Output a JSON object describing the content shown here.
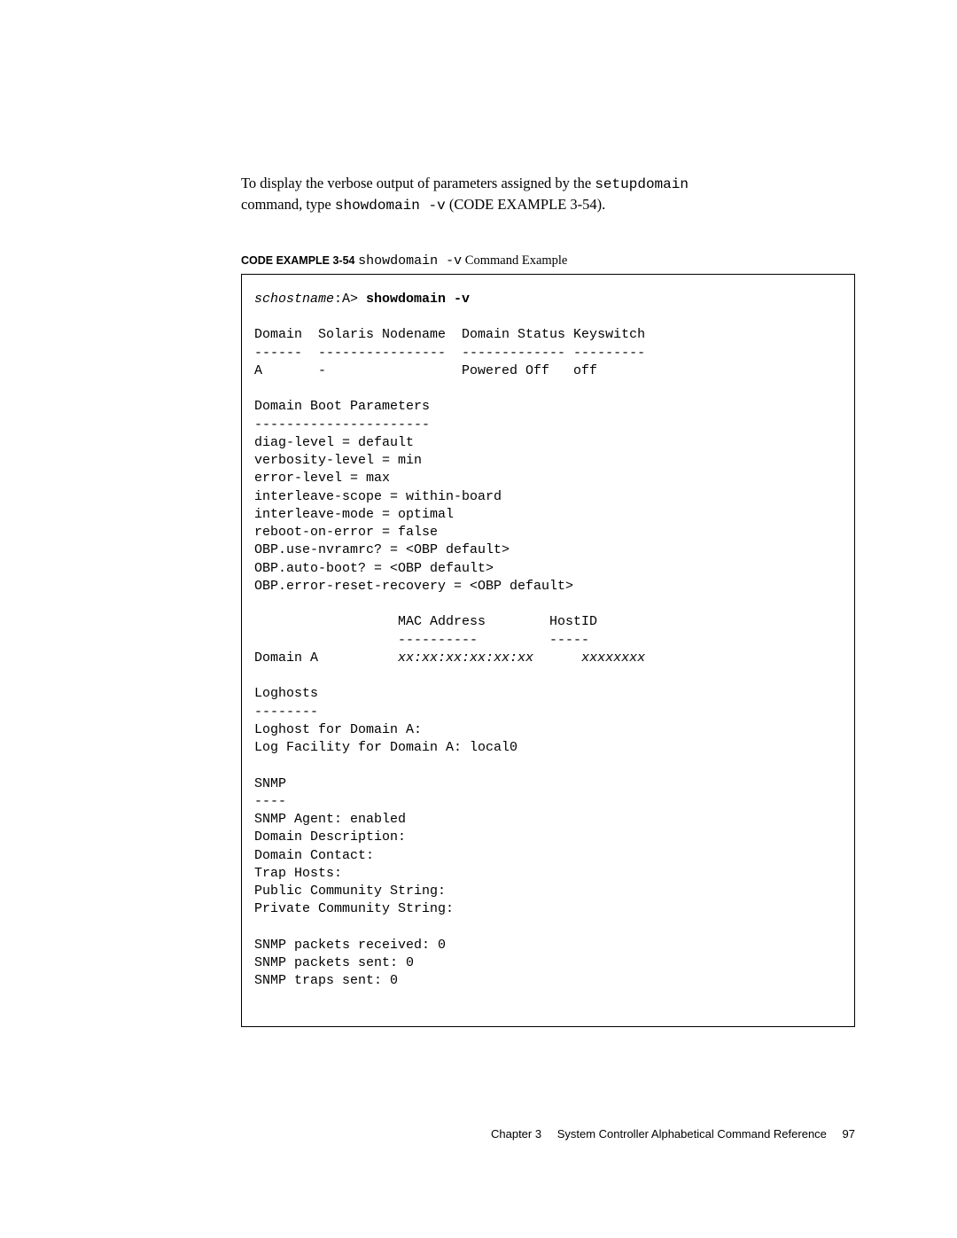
{
  "intro": {
    "line1_pre": "To display the verbose output of parameters assigned by the ",
    "line1_cmd": "setupdomain",
    "line2_pre": "command, type ",
    "line2_cmd": "showdomain -v",
    "line2_mid": " (",
    "line2_ref": "CODE EXAMPLE 3-54",
    "line2_post": ")."
  },
  "caption": {
    "label": "CODE EXAMPLE 3-54",
    "spacer": "   ",
    "cmd": "showdomain -v",
    "suffix": " Command Example"
  },
  "code": {
    "prompt_host": "schostname",
    "prompt_suffix": ":A> ",
    "prompt_cmd": "showdomain -v",
    "block1": "Domain  Solaris Nodename  Domain Status Keyswitch\n------  ----------------  ------------- ---------\nA       -                 Powered Off   off",
    "block2": "Domain Boot Parameters\n----------------------\ndiag-level = default\nverbosity-level = min\nerror-level = max\ninterleave-scope = within-board\ninterleave-mode = optimal\nreboot-on-error = false\nOBP.use-nvramrc? = <OBP default>\nOBP.auto-boot? = <OBP default>\nOBP.error-reset-recovery = <OBP default>",
    "block3_header": "                  MAC Address        HostID\n                  ----------         -----",
    "block3_row_pre": "Domain A          ",
    "block3_mac": "xx:xx:xx:xx:xx:xx",
    "block3_row_mid": "      ",
    "block3_hostid": "xxxxxxxx",
    "block4": "Loghosts\n--------\nLoghost for Domain A:\nLog Facility for Domain A: local0",
    "block5": "SNMP\n----\nSNMP Agent: enabled\nDomain Description:\nDomain Contact:\nTrap Hosts:\nPublic Community String:\nPrivate Community String:",
    "block6": "SNMP packets received: 0\nSNMP packets sent: 0\nSNMP traps sent: 0"
  },
  "footer": {
    "chapter": "Chapter 3",
    "title": "System Controller Alphabetical Command Reference",
    "page": "97"
  }
}
